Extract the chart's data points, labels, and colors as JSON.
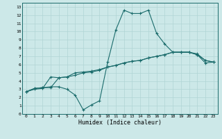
{
  "xlabel": "Humidex (Indice chaleur)",
  "xlim": [
    -0.5,
    23.5
  ],
  "ylim": [
    0,
    13.5
  ],
  "xticks": [
    0,
    1,
    2,
    3,
    4,
    5,
    6,
    7,
    8,
    9,
    10,
    11,
    12,
    13,
    14,
    15,
    16,
    17,
    18,
    19,
    20,
    21,
    22,
    23
  ],
  "yticks": [
    0,
    1,
    2,
    3,
    4,
    5,
    6,
    7,
    8,
    9,
    10,
    11,
    12,
    13
  ],
  "background_color": "#cce8e8",
  "grid_color": "#b0d4d4",
  "line_color": "#1a6b6b",
  "line1_x": [
    0,
    1,
    2,
    3,
    4,
    5,
    6,
    7,
    8,
    9,
    10,
    11,
    12,
    13,
    14,
    15,
    16,
    17,
    18,
    19,
    20,
    21,
    22,
    23
  ],
  "line1_y": [
    2.7,
    3.1,
    3.2,
    3.2,
    4.4,
    4.5,
    5.0,
    5.1,
    5.2,
    5.4,
    5.7,
    5.9,
    6.2,
    6.4,
    6.5,
    6.8,
    7.0,
    7.2,
    7.5,
    7.5,
    7.5,
    7.3,
    6.5,
    6.3
  ],
  "line2_x": [
    0,
    1,
    2,
    3,
    4,
    5,
    6,
    7,
    8,
    9,
    10,
    11,
    12,
    13,
    14,
    15,
    16,
    17,
    18,
    19,
    20,
    21,
    22,
    23
  ],
  "line2_y": [
    2.7,
    3.1,
    3.2,
    3.3,
    3.3,
    3.0,
    2.3,
    0.5,
    1.1,
    1.6,
    6.3,
    10.2,
    12.6,
    12.2,
    12.2,
    12.6,
    9.8,
    8.5,
    7.5,
    7.5,
    7.5,
    7.2,
    6.2,
    6.3
  ],
  "line3_x": [
    0,
    1,
    2,
    3,
    4,
    5,
    6,
    7,
    8,
    9,
    10,
    11,
    12,
    13,
    14,
    15,
    16,
    17,
    18,
    19,
    20,
    21,
    22,
    23
  ],
  "line3_y": [
    2.7,
    3.0,
    3.1,
    4.5,
    4.4,
    4.5,
    4.7,
    5.0,
    5.1,
    5.3,
    5.7,
    5.9,
    6.2,
    6.4,
    6.5,
    6.8,
    7.0,
    7.2,
    7.5,
    7.5,
    7.5,
    7.2,
    6.5,
    6.3
  ],
  "marker": "+",
  "markersize": 3,
  "linewidth": 0.8
}
